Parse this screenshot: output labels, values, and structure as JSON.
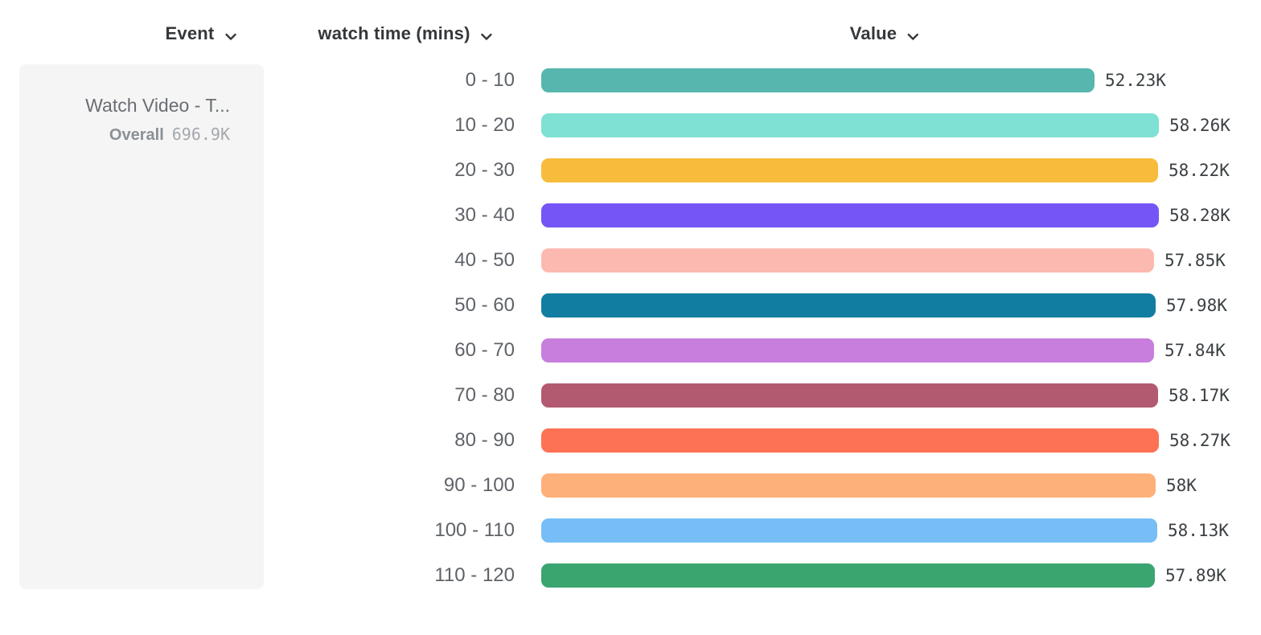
{
  "columns": [
    {
      "label": "Event"
    },
    {
      "label": "watch time (mins)"
    },
    {
      "label": "Value"
    }
  ],
  "event_card": {
    "title": "Watch Video - T...",
    "overall_label": "Overall",
    "overall_value": "696.9K"
  },
  "chart_data": {
    "type": "bar",
    "orientation": "horizontal",
    "title": "",
    "xlabel": "Value",
    "ylabel": "watch time (mins)",
    "xlim": [
      0,
      58280
    ],
    "categories": [
      "0 - 10",
      "10 - 20",
      "20 - 30",
      "30 - 40",
      "40 - 50",
      "50 - 60",
      "60 - 70",
      "70 - 80",
      "80 - 90",
      "90 - 100",
      "100 - 110",
      "110 - 120"
    ],
    "values": [
      52230,
      58260,
      58220,
      58280,
      57850,
      57980,
      57840,
      58170,
      58270,
      58000,
      58130,
      57890
    ],
    "value_labels": [
      "52.23K",
      "58.26K",
      "58.22K",
      "58.28K",
      "57.85K",
      "57.98K",
      "57.84K",
      "58.17K",
      "58.27K",
      "58K",
      "58.13K",
      "57.89K"
    ],
    "colors": [
      "#57b6ad",
      "#7fe0d4",
      "#f7bc3b",
      "#7655f7",
      "#fcb9b0",
      "#117da0",
      "#c77edd",
      "#b25a70",
      "#fd7254",
      "#fdb078",
      "#76bef5",
      "#3ba570"
    ],
    "series_name": "Watch Video",
    "grid": false,
    "legend": false
  }
}
